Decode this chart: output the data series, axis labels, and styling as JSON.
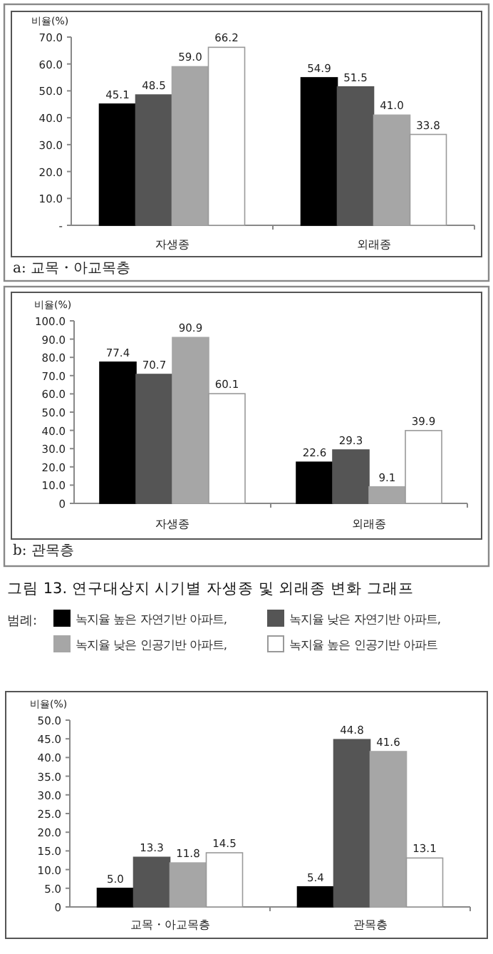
{
  "chart_data": [
    {
      "type": "bar",
      "title": "a: 교목・아교목층",
      "ylabel": "비율(%)",
      "categories": [
        "자생종",
        "외래종"
      ],
      "ylim": [
        0,
        70
      ],
      "yticks": [
        {
          "value": 0,
          "label": "-"
        },
        {
          "value": 10,
          "label": "10.0"
        },
        {
          "value": 20,
          "label": "20.0"
        },
        {
          "value": 30,
          "label": "30.0"
        },
        {
          "value": 40,
          "label": "40.0"
        },
        {
          "value": 50,
          "label": "50.0"
        },
        {
          "value": 60,
          "label": "60.0"
        },
        {
          "value": 70,
          "label": "70.0"
        }
      ],
      "series": [
        {
          "color": "#000000",
          "values": [
            45.1,
            54.9
          ],
          "value_labels": [
            "45.1",
            "54.9"
          ]
        },
        {
          "color": "#555555",
          "values": [
            48.5,
            51.5
          ],
          "value_labels": [
            "48.5",
            "51.5"
          ]
        },
        {
          "color": "#a6a6a6",
          "values": [
            59.0,
            41.0
          ],
          "value_labels": [
            "59.0",
            "41.0"
          ]
        },
        {
          "color": "#ffffff",
          "values": [
            66.2,
            33.8
          ],
          "value_labels": [
            "66.2",
            "33.8"
          ]
        }
      ]
    },
    {
      "type": "bar",
      "title": "b: 관목층",
      "ylabel": "비율(%)",
      "categories": [
        "자생종",
        "외래종"
      ],
      "ylim": [
        0,
        100
      ],
      "yticks": [
        {
          "value": 0,
          "label": "0"
        },
        {
          "value": 10,
          "label": "10.0"
        },
        {
          "value": 20,
          "label": "20.0"
        },
        {
          "value": 30,
          "label": "30.0"
        },
        {
          "value": 40,
          "label": "40.0"
        },
        {
          "value": 50,
          "label": "50.0"
        },
        {
          "value": 60,
          "label": "60.0"
        },
        {
          "value": 70,
          "label": "70.0"
        },
        {
          "value": 80,
          "label": "80.0"
        },
        {
          "value": 90,
          "label": "90.0"
        },
        {
          "value": 100,
          "label": "100.0"
        }
      ],
      "annotations": [
        "그림 13. 연구대상지 시기별 자생종 및 외래종 변화 그래프"
      ],
      "legend": "bottom",
      "legend_title": "범례:",
      "series": [
        {
          "name": "녹지율 높은 자연기반 아파트,",
          "color": "#000000",
          "values": [
            77.4,
            22.6
          ],
          "value_labels": [
            "77.4",
            "22.6"
          ]
        },
        {
          "name": "녹지율 낮은 자연기반 아파트,",
          "color": "#555555",
          "values": [
            70.7,
            29.3
          ],
          "value_labels": [
            "70.7",
            "29.3"
          ]
        },
        {
          "name": "녹지율 낮은 인공기반 아파트,",
          "color": "#a6a6a6",
          "values": [
            90.9,
            9.1
          ],
          "value_labels": [
            "90.9",
            "9.1"
          ]
        },
        {
          "name": "녹지율 높은 인공기반 아파트",
          "color": "#ffffff",
          "values": [
            60.1,
            39.9
          ],
          "value_labels": [
            "60.1",
            "39.9"
          ]
        }
      ]
    },
    {
      "type": "bar",
      "ylabel": "비율(%)",
      "categories": [
        "교목・아교목층",
        "관목층"
      ],
      "ylim": [
        0,
        50
      ],
      "yticks": [
        {
          "value": 0,
          "label": "0"
        },
        {
          "value": 5,
          "label": "5.0"
        },
        {
          "value": 10,
          "label": "10.0"
        },
        {
          "value": 15,
          "label": "15.0"
        },
        {
          "value": 20,
          "label": "20.0"
        },
        {
          "value": 25,
          "label": "25.0"
        },
        {
          "value": 30,
          "label": "30.0"
        },
        {
          "value": 35,
          "label": "35.0"
        },
        {
          "value": 40,
          "label": "40.0"
        },
        {
          "value": 45,
          "label": "45.0"
        },
        {
          "value": 50,
          "label": "50.0"
        }
      ],
      "series": [
        {
          "color": "#000000",
          "values": [
            5.0,
            5.4
          ],
          "value_labels": [
            "5.0",
            "5.4"
          ]
        },
        {
          "color": "#555555",
          "values": [
            13.3,
            44.8
          ],
          "value_labels": [
            "13.3",
            "44.8"
          ]
        },
        {
          "color": "#a6a6a6",
          "values": [
            11.8,
            41.6
          ],
          "value_labels": [
            "11.8",
            "41.6"
          ]
        },
        {
          "color": "#ffffff",
          "values": [
            14.5,
            13.1
          ],
          "value_labels": [
            "14.5",
            "13.1"
          ]
        }
      ]
    }
  ]
}
